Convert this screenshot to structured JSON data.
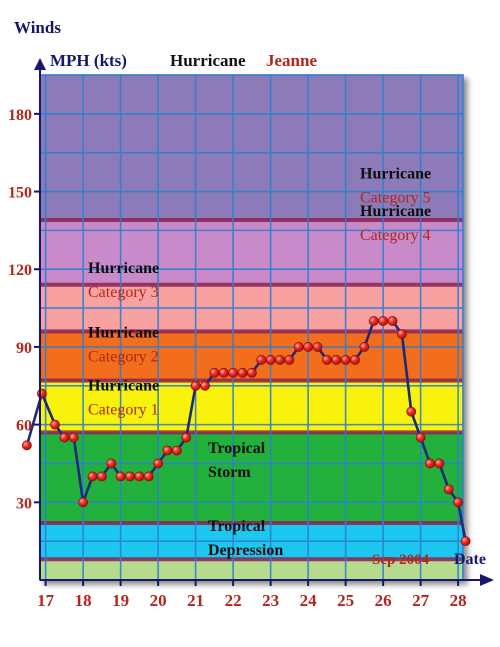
{
  "chart_data": {
    "type": "line",
    "y_axis_title": "Winds",
    "unit_label": "MPH (kts)",
    "title_part1": "Hurricane",
    "title_part2": "Jeanne",
    "xlabel": "Date",
    "month_label": "Sep 2004",
    "ylim": [
      0,
      195
    ],
    "xlim": [
      16.93,
      28.13
    ],
    "y_ticks": [
      30,
      60,
      90,
      120,
      150,
      180
    ],
    "x_ticks": [
      17,
      18,
      19,
      20,
      21,
      22,
      23,
      24,
      25,
      26,
      27,
      28
    ],
    "grid": true,
    "bands": [
      {
        "from": 0,
        "to": 8,
        "color": "#b5dc8e"
      },
      {
        "from": 8,
        "to": 22,
        "color": "#1ec8ef",
        "name1": "Tropical",
        "name2": "Depression"
      },
      {
        "from": 22,
        "to": 57,
        "color": "#22b13d",
        "name1": "Tropical",
        "name2": "Storm"
      },
      {
        "from": 57,
        "to": 77,
        "color": "#f8f20a",
        "name1": "Hurricane",
        "name2": "Category 1"
      },
      {
        "from": 77,
        "to": 96,
        "color": "#f26d1b",
        "name1": "Hurricane",
        "name2": "Category 2"
      },
      {
        "from": 96,
        "to": 114,
        "color": "#f7a1a1",
        "name1": "Hurricane",
        "name2": "Category 3"
      },
      {
        "from": 114,
        "to": 139,
        "color": "#c98ac9",
        "name1": "Hurricane",
        "name2": "Category 4"
      },
      {
        "from": 139,
        "to": 195,
        "color": "#8d7ab8",
        "name1": "Hurricane",
        "name2": "Category 5"
      }
    ],
    "series": [
      {
        "color": "#1d2a7a",
        "points": [
          [
            16.5,
            52
          ],
          [
            16.9,
            72
          ],
          [
            17.25,
            60
          ],
          [
            17.5,
            55
          ],
          [
            17.75,
            55
          ],
          [
            18.0,
            30
          ],
          [
            18.25,
            40
          ],
          [
            18.5,
            40
          ],
          [
            18.75,
            45
          ],
          [
            19.0,
            40
          ],
          [
            19.25,
            40
          ],
          [
            19.5,
            40
          ],
          [
            19.75,
            40
          ],
          [
            20.0,
            45
          ],
          [
            20.25,
            50
          ],
          [
            20.5,
            50
          ],
          [
            20.75,
            55
          ],
          [
            21.0,
            75
          ],
          [
            21.25,
            75
          ],
          [
            21.5,
            80
          ],
          [
            21.75,
            80
          ],
          [
            22.0,
            80
          ],
          [
            22.25,
            80
          ],
          [
            22.5,
            80
          ],
          [
            22.75,
            85
          ],
          [
            23.0,
            85
          ],
          [
            23.25,
            85
          ],
          [
            23.5,
            85
          ],
          [
            23.75,
            90
          ],
          [
            24.0,
            90
          ],
          [
            24.25,
            90
          ],
          [
            24.5,
            85
          ],
          [
            24.75,
            85
          ],
          [
            25.0,
            85
          ],
          [
            25.25,
            85
          ],
          [
            25.5,
            90
          ],
          [
            25.75,
            100
          ],
          [
            26.0,
            100
          ],
          [
            26.25,
            100
          ],
          [
            26.5,
            95
          ],
          [
            26.75,
            65
          ],
          [
            27.0,
            55
          ],
          [
            27.25,
            45
          ],
          [
            27.5,
            45
          ],
          [
            27.75,
            35
          ],
          [
            28.0,
            30
          ],
          [
            28.2,
            15
          ]
        ]
      }
    ]
  }
}
